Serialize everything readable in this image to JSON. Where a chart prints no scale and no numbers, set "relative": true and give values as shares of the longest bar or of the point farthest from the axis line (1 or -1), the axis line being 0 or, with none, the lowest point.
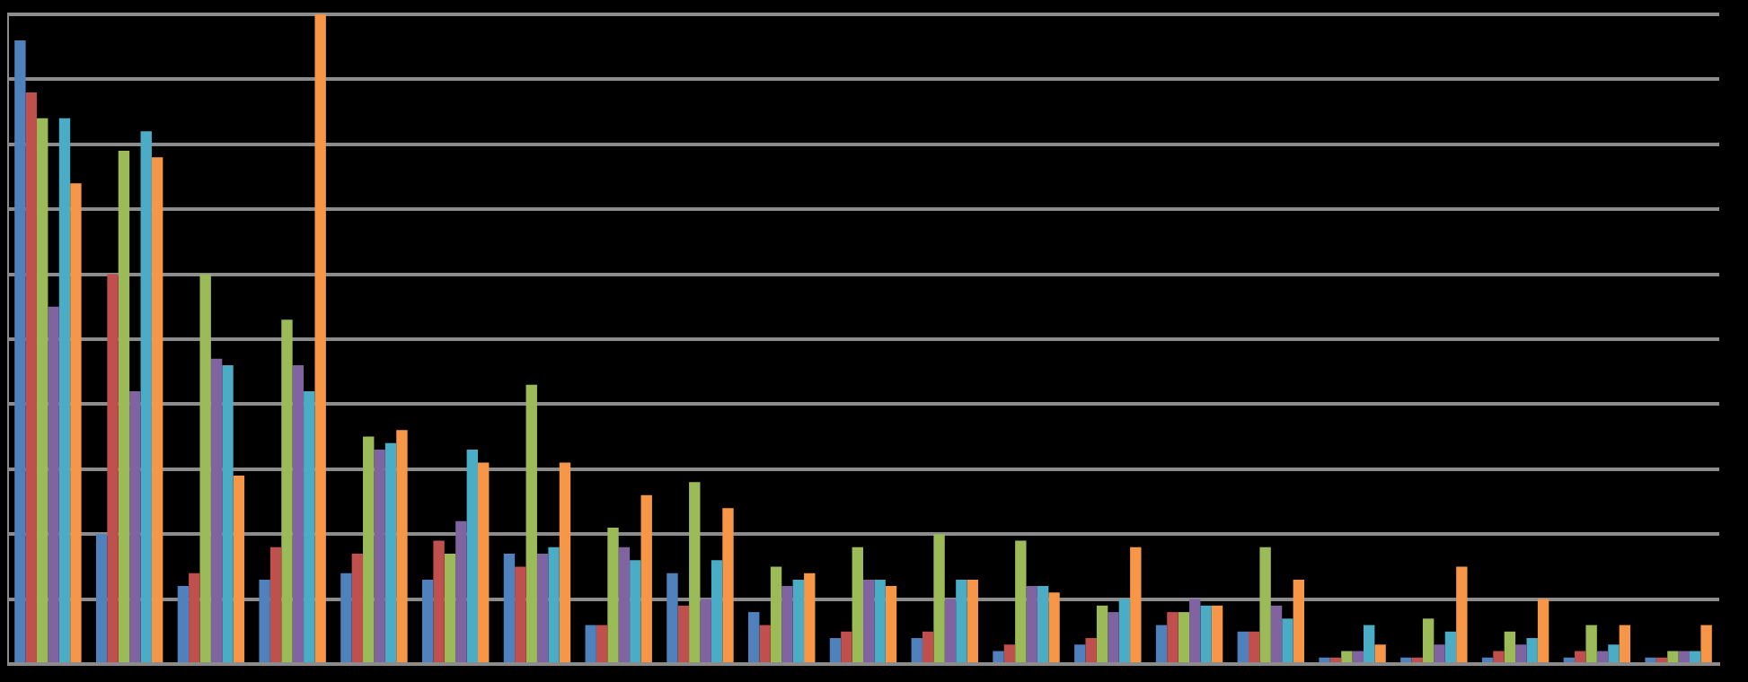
{
  "chart_data": {
    "type": "bar",
    "relative": true,
    "grid": "y",
    "categories": [
      null,
      null,
      null,
      null,
      null,
      null,
      null,
      null,
      null,
      null,
      null,
      null,
      null,
      null,
      null,
      null,
      null,
      null,
      null,
      null,
      null
    ],
    "series": [
      {
        "color": "#4f81bd",
        "values": [
          0.96,
          0.2,
          0.12,
          0.13,
          0.14,
          0.13,
          0.17,
          0.06,
          0.14,
          0.08,
          0.04,
          0.04,
          0.02,
          0.03,
          0.06,
          0.05,
          0.01,
          0.01,
          0.01,
          0.01,
          0.01
        ]
      },
      {
        "color": "#c0504d",
        "values": [
          0.88,
          0.6,
          0.14,
          0.18,
          0.17,
          0.19,
          0.15,
          0.06,
          0.09,
          0.06,
          0.05,
          0.05,
          0.03,
          0.04,
          0.08,
          0.05,
          0.01,
          0.01,
          0.02,
          0.02,
          0.01
        ]
      },
      {
        "color": "#9bbb59",
        "values": [
          0.84,
          0.79,
          0.6,
          0.53,
          0.35,
          0.17,
          0.43,
          0.21,
          0.28,
          0.15,
          0.18,
          0.2,
          0.19,
          0.09,
          0.08,
          0.18,
          0.02,
          0.07,
          0.05,
          0.06,
          0.02
        ]
      },
      {
        "color": "#8064a2",
        "values": [
          0.55,
          0.42,
          0.47,
          0.46,
          0.33,
          0.22,
          0.17,
          0.18,
          0.1,
          0.12,
          0.13,
          0.1,
          0.12,
          0.08,
          0.1,
          0.09,
          0.02,
          0.03,
          0.03,
          0.02,
          0.02
        ]
      },
      {
        "color": "#4bacc6",
        "values": [
          0.84,
          0.82,
          0.46,
          0.42,
          0.34,
          0.33,
          0.18,
          0.16,
          0.16,
          0.13,
          0.13,
          0.13,
          0.12,
          0.1,
          0.09,
          0.07,
          0.06,
          0.05,
          0.04,
          0.03,
          0.02
        ]
      },
      {
        "color": "#f79646",
        "values": [
          0.74,
          0.78,
          0.29,
          1,
          0.36,
          0.31,
          0.31,
          0.26,
          0.24,
          0.14,
          0.12,
          0.13,
          0.11,
          0.18,
          0.09,
          0.13,
          0.03,
          0.15,
          0.1,
          0.06,
          0.06
        ]
      }
    ]
  }
}
